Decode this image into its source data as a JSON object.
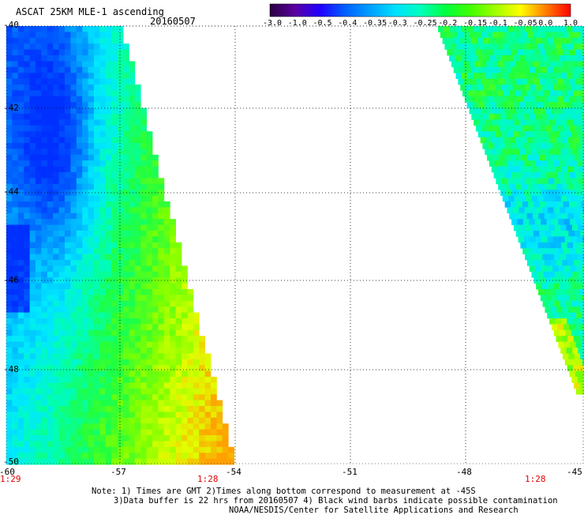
{
  "header": {
    "title": "ASCAT 25KM MLE-1 ascending",
    "date": "20160507"
  },
  "colorbar": {
    "tick_labels": [
      "-3.0",
      "-1.0",
      "-0.5",
      "-0.4",
      "-0.35",
      "-0.3",
      "-0.25",
      "-0.2",
      "-0.15",
      "-0.1",
      "-0.05",
      "0.0",
      "1.0"
    ],
    "colors": [
      "#2a0040",
      "#5a00a0",
      "#2000ff",
      "#0060ff",
      "#00a0ff",
      "#00e0ff",
      "#00ffc0",
      "#00ff40",
      "#40ff00",
      "#a0ff00",
      "#ffff00",
      "#ff8000",
      "#ff0000"
    ]
  },
  "map": {
    "lat_labels": [
      "-40",
      "-42",
      "-44",
      "-46",
      "-48",
      "-50"
    ],
    "lon_labels": [
      "-60",
      "-57",
      "-54",
      "-51",
      "-48",
      "-45"
    ],
    "time_labels": [
      "1:29",
      "1:28",
      "1:28"
    ],
    "time_color": "#e00000"
  },
  "notes": {
    "line1": "Note: 1) Times are GMT 2)Times along bottom correspond to measurement at -45S",
    "line2": "3)Data buffer is 22 hrs from 20160507 4) Black wind barbs indicate possible contamination",
    "line3": "NOAA/NESDIS/Center for Satellite Applications and Research"
  }
}
